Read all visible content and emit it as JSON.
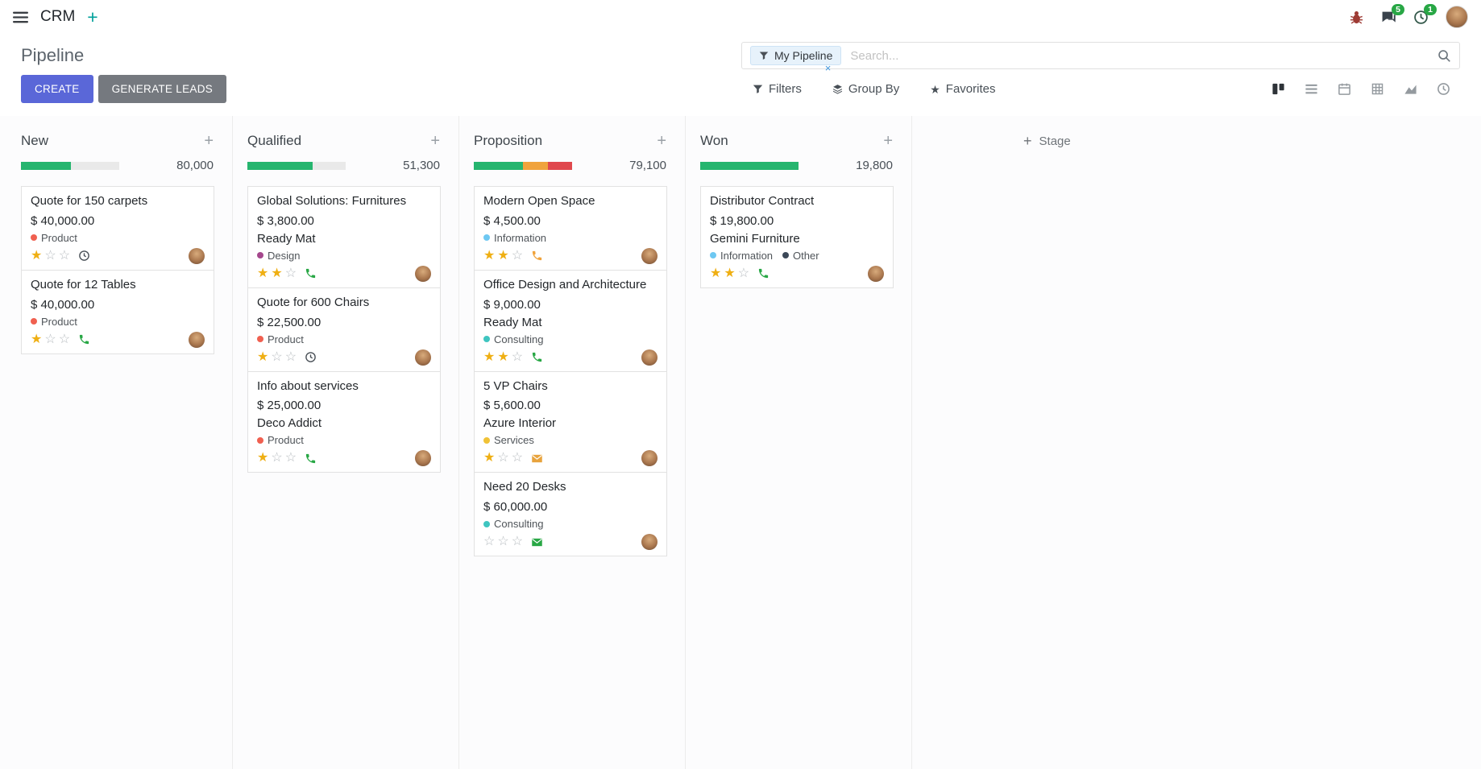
{
  "colors": {
    "accent": "#5a67d8",
    "badge_green": "#28a745",
    "progress_green": "#26b56f",
    "progress_yellow": "#f0a33c",
    "progress_red": "#e0484d",
    "star_gold": "#efaf13"
  },
  "navbar": {
    "app_name": "CRM",
    "messages_badge": "5",
    "activities_badge": "1"
  },
  "control_panel": {
    "title": "Pipeline",
    "create_label": "CREATE",
    "generate_leads_label": "GENERATE LEADS",
    "filters_label": "Filters",
    "group_by_label": "Group By",
    "favorites_label": "Favorites",
    "search": {
      "facet": "My Pipeline",
      "facet_remove": "×",
      "placeholder": "Search...",
      "icons": [
        "filter-icon",
        "search-icon"
      ]
    },
    "view_switcher": [
      {
        "name": "kanban",
        "icon": "kanban-view-icon",
        "active": true
      },
      {
        "name": "list",
        "icon": "list-view-icon",
        "active": false
      },
      {
        "name": "calendar",
        "icon": "calendar-view-icon",
        "active": false
      },
      {
        "name": "pivot",
        "icon": "pivot-view-icon",
        "active": false
      },
      {
        "name": "graph",
        "icon": "graph-view-icon",
        "active": false
      },
      {
        "name": "activity",
        "icon": "activity-view-icon",
        "active": false
      }
    ]
  },
  "board": {
    "add_stage_label": "Stage",
    "columns": [
      {
        "title": "New",
        "counter": "80,000",
        "progress": [
          {
            "color": "#26b56f",
            "pct": 51
          }
        ],
        "cards": [
          {
            "title": "Quote for 150 carpets",
            "amount": "$ 40,000.00",
            "partner": null,
            "tags": [
              {
                "label": "Product",
                "color": "#f06050"
              }
            ],
            "stars": 1,
            "activity": {
              "icon": "clock",
              "color": "#495057"
            }
          },
          {
            "title": "Quote for 12 Tables",
            "amount": "$ 40,000.00",
            "partner": null,
            "tags": [
              {
                "label": "Product",
                "color": "#f06050"
              }
            ],
            "stars": 1,
            "activity": {
              "icon": "phone",
              "color": "#28a745"
            }
          }
        ]
      },
      {
        "title": "Qualified",
        "counter": "51,300",
        "progress": [
          {
            "color": "#26b56f",
            "pct": 66
          }
        ],
        "cards": [
          {
            "title": "Global Solutions: Furnitures",
            "amount": "$ 3,800.00",
            "partner": "Ready Mat",
            "tags": [
              {
                "label": "Design",
                "color": "#a5488d"
              }
            ],
            "stars": 2,
            "activity": {
              "icon": "phone",
              "color": "#28a745"
            }
          },
          {
            "title": "Quote for 600 Chairs",
            "amount": "$ 22,500.00",
            "partner": null,
            "tags": [
              {
                "label": "Product",
                "color": "#f06050"
              }
            ],
            "stars": 1,
            "activity": {
              "icon": "clock",
              "color": "#495057"
            }
          },
          {
            "title": "Info about services",
            "amount": "$ 25,000.00",
            "partner": "Deco Addict",
            "tags": [
              {
                "label": "Product",
                "color": "#f06050"
              }
            ],
            "stars": 1,
            "activity": {
              "icon": "phone",
              "color": "#28a745"
            }
          }
        ]
      },
      {
        "title": "Proposition",
        "counter": "79,100",
        "progress": [
          {
            "color": "#26b56f",
            "pct": 50
          },
          {
            "color": "#f0a33c",
            "pct": 25
          },
          {
            "color": "#e0484d",
            "pct": 25
          }
        ],
        "cards": [
          {
            "title": "Modern Open Space",
            "amount": "$ 4,500.00",
            "partner": null,
            "tags": [
              {
                "label": "Information",
                "color": "#6ec8f2"
              }
            ],
            "stars": 2,
            "activity": {
              "icon": "phone",
              "color": "#f0a33c"
            }
          },
          {
            "title": "Office Design and Architecture",
            "amount": "$ 9,000.00",
            "partner": "Ready Mat",
            "tags": [
              {
                "label": "Consulting",
                "color": "#3fc5c0"
              }
            ],
            "stars": 2,
            "activity": {
              "icon": "phone",
              "color": "#28a745"
            }
          },
          {
            "title": "5 VP Chairs",
            "amount": "$ 5,600.00",
            "partner": "Azure Interior",
            "tags": [
              {
                "label": "Services",
                "color": "#f0c236"
              }
            ],
            "stars": 1,
            "activity": {
              "icon": "envelope",
              "color": "#e8a33d"
            }
          },
          {
            "title": "Need 20 Desks",
            "amount": "$ 60,000.00",
            "partner": null,
            "tags": [
              {
                "label": "Consulting",
                "color": "#3fc5c0"
              }
            ],
            "stars": 0,
            "activity": {
              "icon": "envelope",
              "color": "#28a745"
            }
          }
        ]
      },
      {
        "title": "Won",
        "counter": "19,800",
        "progress": [
          {
            "color": "#26b56f",
            "pct": 100
          }
        ],
        "cards": [
          {
            "title": "Distributor Contract",
            "amount": "$ 19,800.00",
            "partner": "Gemini Furniture",
            "tags": [
              {
                "label": "Information",
                "color": "#6ec8f2"
              },
              {
                "label": "Other",
                "color": "#3c4858"
              }
            ],
            "stars": 2,
            "activity": {
              "icon": "phone",
              "color": "#28a745"
            }
          }
        ]
      }
    ]
  }
}
